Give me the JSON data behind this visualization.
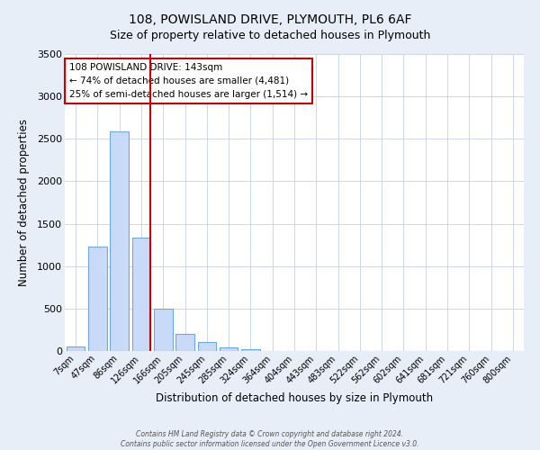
{
  "title": "108, POWISLAND DRIVE, PLYMOUTH, PL6 6AF",
  "subtitle": "Size of property relative to detached houses in Plymouth",
  "xlabel": "Distribution of detached houses by size in Plymouth",
  "ylabel": "Number of detached properties",
  "bar_labels": [
    "7sqm",
    "47sqm",
    "86sqm",
    "126sqm",
    "166sqm",
    "205sqm",
    "245sqm",
    "285sqm",
    "324sqm",
    "364sqm",
    "404sqm",
    "443sqm",
    "483sqm",
    "522sqm",
    "562sqm",
    "602sqm",
    "641sqm",
    "681sqm",
    "721sqm",
    "760sqm",
    "800sqm"
  ],
  "bar_values": [
    50,
    1230,
    2590,
    1340,
    500,
    200,
    110,
    45,
    25,
    5,
    0,
    0,
    5,
    0,
    0,
    0,
    0,
    0,
    0,
    0,
    0
  ],
  "bar_color": "#c9daf8",
  "bar_edgecolor": "#6fa8dc",
  "vline_color": "#cc0000",
  "annotation_text": "108 POWISLAND DRIVE: 143sqm\n← 74% of detached houses are smaller (4,481)\n25% of semi-detached houses are larger (1,514) →",
  "annotation_box_edgecolor": "#cc0000",
  "ylim": [
    0,
    3500
  ],
  "yticks": [
    0,
    500,
    1000,
    1500,
    2000,
    2500,
    3000,
    3500
  ],
  "footer_line1": "Contains HM Land Registry data © Crown copyright and database right 2024.",
  "footer_line2": "Contains public sector information licensed under the Open Government Licence v3.0.",
  "bg_color": "#e8eef8",
  "plot_bg_color": "#ffffff",
  "grid_color": "#c8d0e0"
}
